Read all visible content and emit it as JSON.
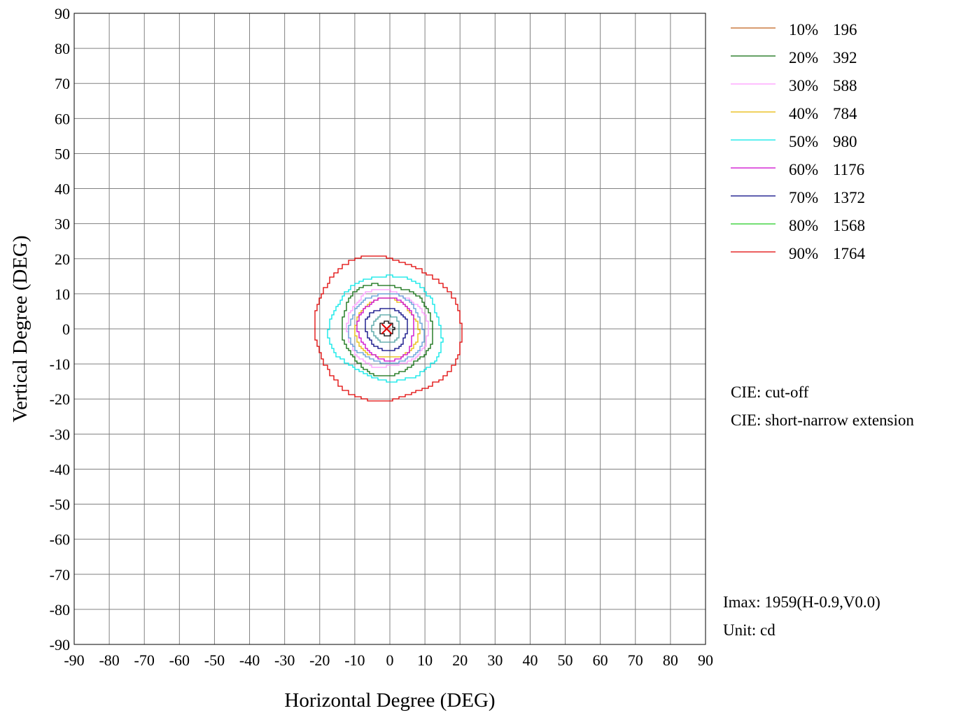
{
  "chart_data": {
    "type": "contour",
    "title": "",
    "xlabel": "Horizontal  Degree (DEG)",
    "ylabel": "Vertical  Degree (DEG)",
    "xlim": [
      -90,
      90
    ],
    "ylim": [
      -90,
      90
    ],
    "x_ticks": [
      "-90",
      "-80",
      "-70",
      "-60",
      "-50",
      "-40",
      "-30",
      "-20",
      "-10",
      "0",
      "10",
      "20",
      "30",
      "40",
      "50",
      "60",
      "70",
      "80",
      "90"
    ],
    "y_ticks": [
      "90",
      "80",
      "70",
      "60",
      "50",
      "40",
      "30",
      "20",
      "10",
      "0",
      "-10",
      "-20",
      "-30",
      "-40",
      "-50",
      "-60",
      "-70",
      "-80",
      "-90"
    ],
    "grid": true,
    "legend_position": "top-right",
    "series": [
      {
        "name": "10%",
        "value": "196",
        "color": "#c0601a",
        "radius_h": null,
        "radius_v": null
      },
      {
        "name": "20%",
        "value": "392",
        "color": "#0b6b0b",
        "radius_h": 13,
        "radius_v": 13
      },
      {
        "name": "30%",
        "value": "588",
        "color": "#ff99ff",
        "radius_h": 11.5,
        "radius_v": 11
      },
      {
        "name": "40%",
        "value": "784",
        "color": "#e6b800",
        "radius_h": 9,
        "radius_v": 8.5
      },
      {
        "name": "50%",
        "value": "980",
        "color": "#00e6e6",
        "radius_h": 16,
        "radius_v": 15
      },
      {
        "name": "60%",
        "value": "1176",
        "color": "#cc00cc",
        "radius_h": 8,
        "radius_v": 9
      },
      {
        "name": "70%",
        "value": "1372",
        "color": "#000080",
        "radius_h": 6,
        "radius_v": 6
      },
      {
        "name": "80%",
        "value": "1568",
        "color": "#22cc22",
        "radius_h": null,
        "radius_v": null
      },
      {
        "name": "90%",
        "value": "1764",
        "color": "#e00000",
        "radius_h": 21,
        "radius_v": 20.5
      }
    ],
    "extra_contours": [
      {
        "color": "#5b9bd5",
        "radius_h": 10.5,
        "radius_v": 10
      },
      {
        "color": "#4aa0a0",
        "radius_h": 4,
        "radius_v": 4
      },
      {
        "color": "#000000",
        "radius_h": 2,
        "radius_v": 2
      }
    ],
    "max_point": {
      "x": -0.9,
      "y": 0.0,
      "marker": "x",
      "color": "#e00000"
    }
  },
  "info": {
    "cie_1": "CIE:  cut-off",
    "cie_2": "CIE:  short-narrow extension",
    "imax": "Imax:  1959(H-0.9,V0.0)",
    "unit": "Unit:  cd"
  }
}
